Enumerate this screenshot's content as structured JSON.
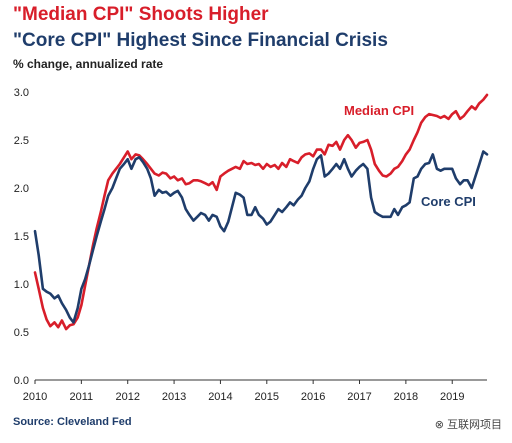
{
  "header": {
    "title": "\"Median CPI\" Shoots Higher",
    "title2": "\"Core CPI\" Highest Since Financial Crisis",
    "subtitle": "% change, annualized rate"
  },
  "footer": {
    "source": "Source: Cleveland Fed",
    "watermark": "⊗ 互联网项目"
  },
  "colors": {
    "median": "#d81e2a",
    "core": "#1f3d6b",
    "title_red": "#d81e2a",
    "title_navy": "#1f3d6b"
  },
  "chart_data": {
    "type": "line",
    "title": "\"Median CPI\" Shoots Higher",
    "subtitle": "\"Core CPI\" Highest Since Financial Crisis",
    "ylabel": "% change, annualized rate",
    "xlabel": "",
    "xlim": [
      2010,
      2019.75
    ],
    "ylim": [
      0.0,
      3.0
    ],
    "x_ticks": [
      "2010",
      "2011",
      "2012",
      "2013",
      "2014",
      "2015",
      "2016",
      "2017",
      "2018",
      "2019"
    ],
    "y_ticks": [
      "0.0",
      "0.5",
      "1.0",
      "1.5",
      "2.0",
      "2.5",
      "3.0"
    ],
    "grid": false,
    "legend": "inline labels",
    "series": [
      {
        "name": "Median CPI",
        "color": "#d81e2a",
        "points": [
          [
            2010.0,
            1.12
          ],
          [
            2010.08,
            0.95
          ],
          [
            2010.17,
            0.75
          ],
          [
            2010.25,
            0.63
          ],
          [
            2010.33,
            0.56
          ],
          [
            2010.42,
            0.6
          ],
          [
            2010.5,
            0.55
          ],
          [
            2010.58,
            0.62
          ],
          [
            2010.67,
            0.53
          ],
          [
            2010.75,
            0.57
          ],
          [
            2010.83,
            0.58
          ],
          [
            2010.92,
            0.65
          ],
          [
            2011.0,
            0.78
          ],
          [
            2011.08,
            0.98
          ],
          [
            2011.17,
            1.2
          ],
          [
            2011.25,
            1.4
          ],
          [
            2011.33,
            1.58
          ],
          [
            2011.42,
            1.75
          ],
          [
            2011.5,
            1.92
          ],
          [
            2011.58,
            2.08
          ],
          [
            2011.67,
            2.15
          ],
          [
            2011.75,
            2.2
          ],
          [
            2011.83,
            2.25
          ],
          [
            2011.92,
            2.32
          ],
          [
            2012.0,
            2.38
          ],
          [
            2012.08,
            2.3
          ],
          [
            2012.17,
            2.35
          ],
          [
            2012.25,
            2.34
          ],
          [
            2012.33,
            2.3
          ],
          [
            2012.42,
            2.25
          ],
          [
            2012.5,
            2.2
          ],
          [
            2012.58,
            2.15
          ],
          [
            2012.67,
            2.13
          ],
          [
            2012.75,
            2.16
          ],
          [
            2012.83,
            2.15
          ],
          [
            2012.92,
            2.1
          ],
          [
            2013.0,
            2.12
          ],
          [
            2013.08,
            2.08
          ],
          [
            2013.17,
            2.1
          ],
          [
            2013.25,
            2.04
          ],
          [
            2013.33,
            2.05
          ],
          [
            2013.42,
            2.08
          ],
          [
            2013.5,
            2.08
          ],
          [
            2013.58,
            2.07
          ],
          [
            2013.67,
            2.05
          ],
          [
            2013.75,
            2.03
          ],
          [
            2013.83,
            2.06
          ],
          [
            2013.92,
            1.98
          ],
          [
            2014.0,
            2.12
          ],
          [
            2014.08,
            2.15
          ],
          [
            2014.17,
            2.18
          ],
          [
            2014.25,
            2.2
          ],
          [
            2014.33,
            2.22
          ],
          [
            2014.42,
            2.2
          ],
          [
            2014.5,
            2.28
          ],
          [
            2014.58,
            2.25
          ],
          [
            2014.67,
            2.26
          ],
          [
            2014.75,
            2.24
          ],
          [
            2014.83,
            2.25
          ],
          [
            2014.92,
            2.2
          ],
          [
            2015.0,
            2.25
          ],
          [
            2015.08,
            2.22
          ],
          [
            2015.17,
            2.24
          ],
          [
            2015.25,
            2.2
          ],
          [
            2015.33,
            2.26
          ],
          [
            2015.42,
            2.22
          ],
          [
            2015.5,
            2.3
          ],
          [
            2015.58,
            2.28
          ],
          [
            2015.67,
            2.26
          ],
          [
            2015.75,
            2.32
          ],
          [
            2015.83,
            2.35
          ],
          [
            2015.92,
            2.36
          ],
          [
            2016.0,
            2.33
          ],
          [
            2016.08,
            2.4
          ],
          [
            2016.17,
            2.4
          ],
          [
            2016.25,
            2.35
          ],
          [
            2016.33,
            2.45
          ],
          [
            2016.42,
            2.44
          ],
          [
            2016.5,
            2.48
          ],
          [
            2016.58,
            2.4
          ],
          [
            2016.67,
            2.5
          ],
          [
            2016.75,
            2.55
          ],
          [
            2016.83,
            2.5
          ],
          [
            2016.92,
            2.42
          ],
          [
            2017.0,
            2.47
          ],
          [
            2017.08,
            2.48
          ],
          [
            2017.17,
            2.5
          ],
          [
            2017.25,
            2.4
          ],
          [
            2017.33,
            2.25
          ],
          [
            2017.42,
            2.18
          ],
          [
            2017.5,
            2.13
          ],
          [
            2017.58,
            2.12
          ],
          [
            2017.67,
            2.15
          ],
          [
            2017.75,
            2.2
          ],
          [
            2017.83,
            2.22
          ],
          [
            2017.92,
            2.28
          ],
          [
            2018.0,
            2.35
          ],
          [
            2018.08,
            2.4
          ],
          [
            2018.17,
            2.5
          ],
          [
            2018.25,
            2.58
          ],
          [
            2018.33,
            2.68
          ],
          [
            2018.42,
            2.74
          ],
          [
            2018.5,
            2.77
          ],
          [
            2018.58,
            2.76
          ],
          [
            2018.67,
            2.75
          ],
          [
            2018.75,
            2.73
          ],
          [
            2018.83,
            2.75
          ],
          [
            2018.92,
            2.72
          ],
          [
            2019.0,
            2.77
          ],
          [
            2019.08,
            2.8
          ],
          [
            2019.17,
            2.72
          ],
          [
            2019.25,
            2.75
          ],
          [
            2019.33,
            2.8
          ],
          [
            2019.42,
            2.85
          ],
          [
            2019.5,
            2.82
          ],
          [
            2019.58,
            2.88
          ],
          [
            2019.67,
            2.92
          ],
          [
            2019.75,
            2.97
          ]
        ]
      },
      {
        "name": "Core CPI",
        "color": "#1f3d6b",
        "points": [
          [
            2010.0,
            1.55
          ],
          [
            2010.08,
            1.3
          ],
          [
            2010.17,
            0.95
          ],
          [
            2010.25,
            0.92
          ],
          [
            2010.33,
            0.9
          ],
          [
            2010.42,
            0.85
          ],
          [
            2010.5,
            0.88
          ],
          [
            2010.58,
            0.8
          ],
          [
            2010.67,
            0.73
          ],
          [
            2010.75,
            0.65
          ],
          [
            2010.83,
            0.6
          ],
          [
            2010.92,
            0.75
          ],
          [
            2011.0,
            0.95
          ],
          [
            2011.08,
            1.05
          ],
          [
            2011.17,
            1.2
          ],
          [
            2011.25,
            1.35
          ],
          [
            2011.33,
            1.5
          ],
          [
            2011.42,
            1.65
          ],
          [
            2011.5,
            1.78
          ],
          [
            2011.58,
            1.92
          ],
          [
            2011.67,
            2.0
          ],
          [
            2011.75,
            2.1
          ],
          [
            2011.83,
            2.2
          ],
          [
            2011.92,
            2.25
          ],
          [
            2012.0,
            2.3
          ],
          [
            2012.08,
            2.2
          ],
          [
            2012.17,
            2.3
          ],
          [
            2012.25,
            2.32
          ],
          [
            2012.33,
            2.27
          ],
          [
            2012.42,
            2.2
          ],
          [
            2012.5,
            2.1
          ],
          [
            2012.58,
            1.92
          ],
          [
            2012.67,
            1.98
          ],
          [
            2012.75,
            1.95
          ],
          [
            2012.83,
            1.96
          ],
          [
            2012.92,
            1.92
          ],
          [
            2013.0,
            1.95
          ],
          [
            2013.08,
            1.97
          ],
          [
            2013.17,
            1.9
          ],
          [
            2013.25,
            1.78
          ],
          [
            2013.33,
            1.72
          ],
          [
            2013.42,
            1.66
          ],
          [
            2013.5,
            1.7
          ],
          [
            2013.58,
            1.74
          ],
          [
            2013.67,
            1.72
          ],
          [
            2013.75,
            1.66
          ],
          [
            2013.83,
            1.72
          ],
          [
            2013.92,
            1.7
          ],
          [
            2014.0,
            1.6
          ],
          [
            2014.08,
            1.55
          ],
          [
            2014.17,
            1.65
          ],
          [
            2014.25,
            1.8
          ],
          [
            2014.33,
            1.95
          ],
          [
            2014.42,
            1.93
          ],
          [
            2014.5,
            1.9
          ],
          [
            2014.58,
            1.72
          ],
          [
            2014.67,
            1.72
          ],
          [
            2014.75,
            1.8
          ],
          [
            2014.83,
            1.72
          ],
          [
            2014.92,
            1.68
          ],
          [
            2015.0,
            1.62
          ],
          [
            2015.08,
            1.65
          ],
          [
            2015.17,
            1.72
          ],
          [
            2015.25,
            1.78
          ],
          [
            2015.33,
            1.75
          ],
          [
            2015.42,
            1.8
          ],
          [
            2015.5,
            1.85
          ],
          [
            2015.58,
            1.82
          ],
          [
            2015.67,
            1.88
          ],
          [
            2015.75,
            1.92
          ],
          [
            2015.83,
            2.0
          ],
          [
            2015.92,
            2.07
          ],
          [
            2016.0,
            2.2
          ],
          [
            2016.08,
            2.3
          ],
          [
            2016.17,
            2.34
          ],
          [
            2016.25,
            2.12
          ],
          [
            2016.33,
            2.15
          ],
          [
            2016.42,
            2.2
          ],
          [
            2016.5,
            2.25
          ],
          [
            2016.58,
            2.2
          ],
          [
            2016.67,
            2.3
          ],
          [
            2016.75,
            2.2
          ],
          [
            2016.83,
            2.12
          ],
          [
            2016.92,
            2.18
          ],
          [
            2017.0,
            2.22
          ],
          [
            2017.08,
            2.25
          ],
          [
            2017.17,
            2.2
          ],
          [
            2017.25,
            1.9
          ],
          [
            2017.33,
            1.75
          ],
          [
            2017.42,
            1.72
          ],
          [
            2017.5,
            1.7
          ],
          [
            2017.58,
            1.7
          ],
          [
            2017.67,
            1.7
          ],
          [
            2017.75,
            1.78
          ],
          [
            2017.83,
            1.72
          ],
          [
            2017.92,
            1.8
          ],
          [
            2018.0,
            1.82
          ],
          [
            2018.08,
            1.85
          ],
          [
            2018.17,
            2.1
          ],
          [
            2018.25,
            2.12
          ],
          [
            2018.33,
            2.2
          ],
          [
            2018.42,
            2.25
          ],
          [
            2018.5,
            2.26
          ],
          [
            2018.58,
            2.35
          ],
          [
            2018.67,
            2.2
          ],
          [
            2018.75,
            2.18
          ],
          [
            2018.83,
            2.2
          ],
          [
            2018.92,
            2.2
          ],
          [
            2019.0,
            2.2
          ],
          [
            2019.08,
            2.1
          ],
          [
            2019.17,
            2.04
          ],
          [
            2019.25,
            2.08
          ],
          [
            2019.33,
            2.08
          ],
          [
            2019.42,
            2.0
          ],
          [
            2019.5,
            2.12
          ],
          [
            2019.58,
            2.24
          ],
          [
            2019.67,
            2.38
          ],
          [
            2019.75,
            2.35
          ]
        ]
      }
    ]
  }
}
